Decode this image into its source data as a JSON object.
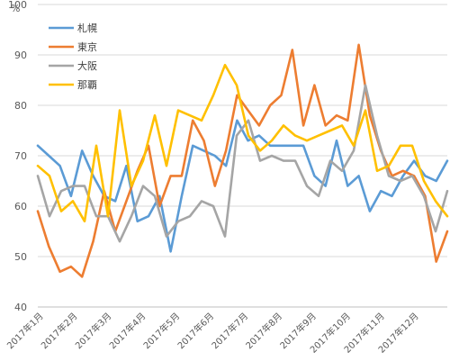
{
  "chart_data": {
    "type": "line",
    "ylabel": "%",
    "ylim": [
      40,
      100
    ],
    "yticks": [
      40,
      50,
      60,
      70,
      80,
      90,
      100
    ],
    "grid": true,
    "legend_position": "top-left",
    "month_labels": [
      "2017年1月",
      "2017年2月",
      "2017年3月",
      "2017年4月",
      "2017年5月",
      "2017年6月",
      "2017年7月",
      "2017年8月",
      "2017年9月",
      "2017年10月",
      "2017年11月",
      "2017年12月"
    ],
    "series": [
      {
        "name": "札幌",
        "color": "#5B9BD5",
        "values": [
          72,
          70,
          68,
          62,
          71,
          66,
          62,
          61,
          68,
          57,
          58,
          62,
          51,
          62,
          72,
          71,
          70,
          68,
          77,
          73,
          74,
          72,
          72,
          72,
          72,
          66,
          64,
          73,
          64,
          66,
          59,
          63,
          62,
          66,
          69,
          66,
          65,
          69
        ]
      },
      {
        "name": "東京",
        "color": "#ED7D31",
        "values": [
          59,
          52,
          47,
          48,
          46,
          53,
          63,
          55,
          61,
          67,
          72,
          60,
          66,
          66,
          77,
          73,
          64,
          71,
          82,
          79,
          76,
          80,
          82,
          91,
          76,
          84,
          76,
          78,
          77,
          92,
          78,
          71,
          66,
          67,
          66,
          62,
          49,
          55
        ]
      },
      {
        "name": "大阪",
        "color": "#A5A5A5",
        "values": [
          66,
          58,
          63,
          64,
          64,
          58,
          58,
          53,
          58,
          64,
          62,
          54,
          57,
          58,
          61,
          60,
          54,
          74,
          77,
          69,
          70,
          69,
          69,
          64,
          62,
          69,
          67,
          71,
          84,
          74,
          66,
          65,
          66,
          62,
          55,
          63
        ]
      },
      {
        "name": "那覇",
        "color": "#FFC000",
        "values": [
          68,
          66,
          59,
          61,
          57,
          72,
          58,
          79,
          64,
          69,
          78,
          68,
          79,
          78,
          77,
          82,
          88,
          84,
          74,
          71,
          73,
          76,
          74,
          73,
          74,
          75,
          76,
          72,
          79,
          67,
          68,
          72,
          72,
          65,
          61,
          58
        ]
      }
    ]
  }
}
